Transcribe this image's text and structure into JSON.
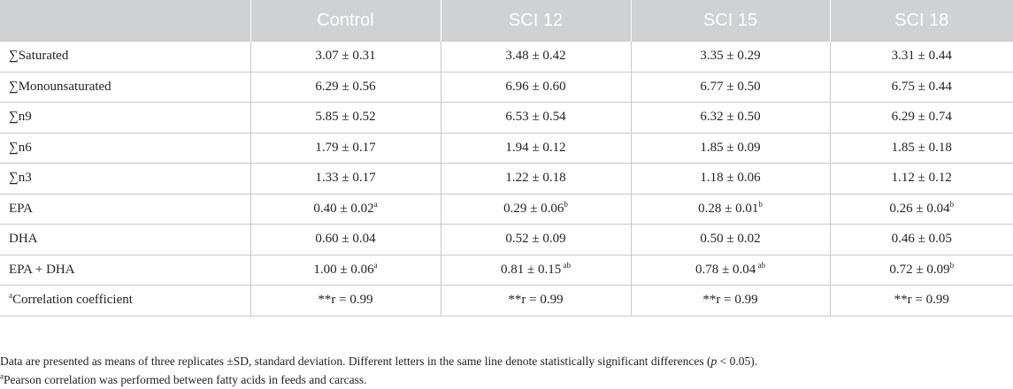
{
  "table": {
    "headers": [
      "",
      "Control",
      "SCI 12",
      "SCI 15",
      "SCI 18"
    ],
    "rows": [
      {
        "label": "∑Saturated",
        "label_sup": "",
        "cells": [
          {
            "v": "3.07 ± 0.31",
            "s": ""
          },
          {
            "v": "3.48 ± 0.42",
            "s": ""
          },
          {
            "v": "3.35 ± 0.29",
            "s": ""
          },
          {
            "v": "3.31 ± 0.44",
            "s": ""
          }
        ]
      },
      {
        "label": "∑Monounsaturated",
        "label_sup": "",
        "cells": [
          {
            "v": "6.29 ± 0.56",
            "s": ""
          },
          {
            "v": "6.96 ± 0.60",
            "s": ""
          },
          {
            "v": "6.77 ± 0.50",
            "s": ""
          },
          {
            "v": "6.75 ± 0.44",
            "s": ""
          }
        ]
      },
      {
        "label": "∑n9",
        "label_sup": "",
        "cells": [
          {
            "v": "5.85 ± 0.52",
            "s": ""
          },
          {
            "v": "6.53 ± 0.54",
            "s": ""
          },
          {
            "v": "6.32 ± 0.50",
            "s": ""
          },
          {
            "v": "6.29 ± 0.74",
            "s": ""
          }
        ]
      },
      {
        "label": "∑n6",
        "label_sup": "",
        "cells": [
          {
            "v": "1.79 ± 0.17",
            "s": ""
          },
          {
            "v": "1.94 ± 0.12",
            "s": ""
          },
          {
            "v": "1.85 ± 0.09",
            "s": ""
          },
          {
            "v": "1.85 ± 0.18",
            "s": ""
          }
        ]
      },
      {
        "label": "∑n3",
        "label_sup": "",
        "cells": [
          {
            "v": "1.33 ± 0.17",
            "s": ""
          },
          {
            "v": "1.22 ± 0.18",
            "s": ""
          },
          {
            "v": "1.18 ± 0.06",
            "s": ""
          },
          {
            "v": "1.12 ± 0.12",
            "s": ""
          }
        ]
      },
      {
        "label": "EPA",
        "label_sup": "",
        "cells": [
          {
            "v": "0.40 ± 0.02",
            "s": "a"
          },
          {
            "v": "0.29 ± 0.06",
            "s": "b"
          },
          {
            "v": "0.28 ± 0.01",
            "s": "b"
          },
          {
            "v": "0.26 ± 0.04",
            "s": "b"
          }
        ]
      },
      {
        "label": "DHA",
        "label_sup": "",
        "cells": [
          {
            "v": "0.60 ± 0.04",
            "s": ""
          },
          {
            "v": "0.52 ± 0.09",
            "s": ""
          },
          {
            "v": "0.50 ± 0.02",
            "s": ""
          },
          {
            "v": "0.46 ± 0.05",
            "s": ""
          }
        ]
      },
      {
        "label": "EPA + DHA",
        "label_sup": "",
        "cells": [
          {
            "v": "1.00 ± 0.06",
            "s": "a"
          },
          {
            "v": "0.81 ± 0.15",
            "s": " ab"
          },
          {
            "v": "0.78 ± 0.04",
            "s": " ab"
          },
          {
            "v": "0.72 ± 0.09",
            "s": "b"
          }
        ]
      },
      {
        "label": "Correlation coefficient",
        "label_sup": "a",
        "cells": [
          {
            "v": "**r = 0.99",
            "s": ""
          },
          {
            "v": "**r = 0.99",
            "s": ""
          },
          {
            "v": "**r = 0.99",
            "s": ""
          },
          {
            "v": "**r = 0.99",
            "s": ""
          }
        ]
      }
    ]
  },
  "notes": {
    "line1_before": "Data are presented as means of three replicates ±SD, standard deviation. Different letters in the same line denote statistically significant differences (",
    "line1_italic": "p",
    "line1_after": " < 0.05).",
    "line2_sup": "a",
    "line2_text": "Pearson correlation was performed between fatty acids in feeds and carcass."
  }
}
